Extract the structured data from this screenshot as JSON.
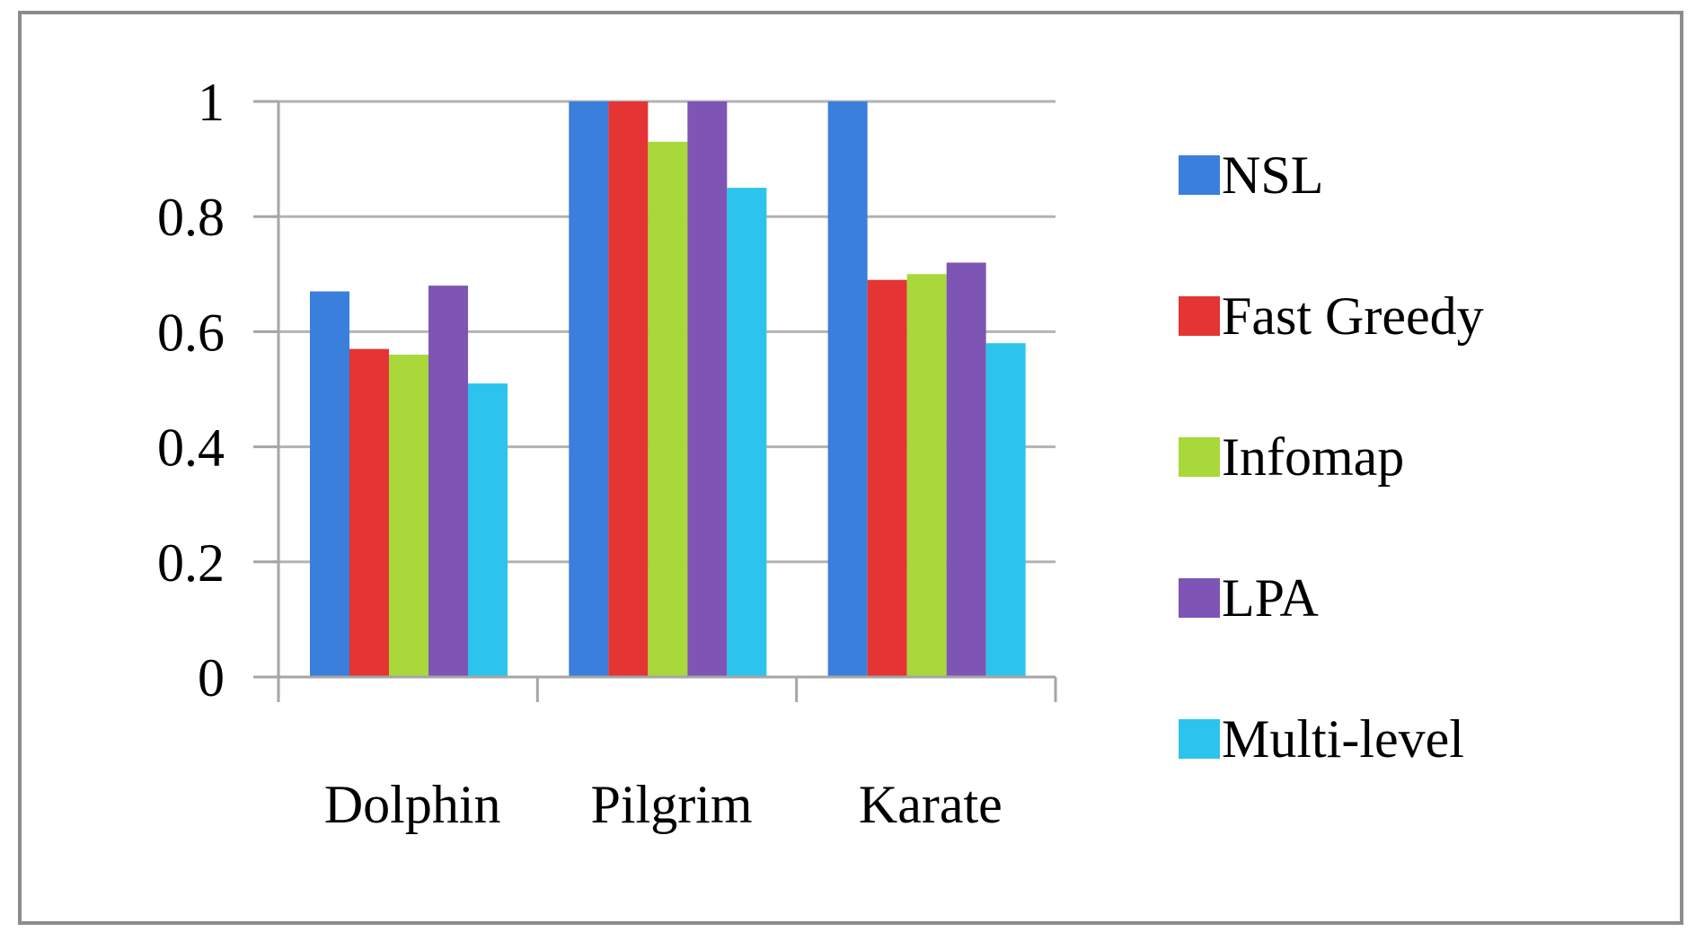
{
  "chart_data": {
    "type": "bar",
    "title": "",
    "xlabel": "",
    "ylabel": "",
    "categories": [
      "Dolphin",
      "Pilgrim",
      "Karate"
    ],
    "ylim": [
      0,
      1
    ],
    "yticks": [
      0,
      0.2,
      0.4,
      0.6,
      0.8,
      1
    ],
    "ytick_labels": [
      "0",
      "0.2",
      "0.4",
      "0.6",
      "0.8",
      "1"
    ],
    "grid": true,
    "legend_position": "right",
    "series": [
      {
        "name": "NSL",
        "color": "#3a7fdc",
        "values": [
          0.67,
          1.0,
          1.0
        ]
      },
      {
        "name": "Fast Greedy",
        "color": "#e43434",
        "values": [
          0.57,
          1.0,
          0.69
        ]
      },
      {
        "name": "Infomap",
        "color": "#a8d83a",
        "values": [
          0.56,
          0.93,
          0.7
        ]
      },
      {
        "name": "LPA",
        "color": "#7e55b4",
        "values": [
          0.68,
          1.0,
          0.72
        ]
      },
      {
        "name": "Multi-level",
        "color": "#2cc4ec",
        "values": [
          0.51,
          0.85,
          0.58
        ]
      }
    ]
  }
}
